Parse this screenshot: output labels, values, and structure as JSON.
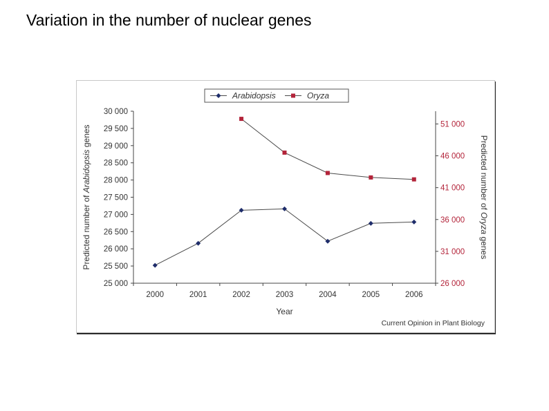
{
  "slide": {
    "title": "Variation in the number of nuclear genes"
  },
  "chart_data": {
    "type": "line",
    "x": [
      2000,
      2001,
      2002,
      2003,
      2004,
      2005,
      2006
    ],
    "xlabel": "Year",
    "series": [
      {
        "name": "Arabidopsis",
        "axis": "left",
        "color": "#1f2d6b",
        "marker": "diamond",
        "values": [
          25520,
          26160,
          27120,
          27160,
          26220,
          26740,
          26780
        ]
      },
      {
        "name": "Oryza",
        "axis": "right",
        "color": "#b3243a",
        "marker": "square",
        "values": [
          null,
          null,
          51800,
          46500,
          43300,
          42600,
          42300
        ]
      }
    ],
    "y_left": {
      "label_prefix": "Predicted number of ",
      "label_italic": "Arabidopsis",
      "label_suffix": " genes",
      "ylim": [
        25000,
        30000
      ],
      "ticks": [
        25000,
        25500,
        26000,
        26500,
        27000,
        27500,
        28000,
        28500,
        29000,
        29500,
        30000
      ],
      "tick_labels": [
        "25 000",
        "25 500",
        "26 000",
        "26 500",
        "27 000",
        "27 500",
        "28 000",
        "28 500",
        "29 000",
        "29 500",
        "30 000"
      ],
      "color": "#333333"
    },
    "y_right": {
      "label_prefix": "Predicted number of ",
      "label_italic": "Oryza",
      "label_suffix": " genes",
      "ylim": [
        26000,
        53000
      ],
      "ticks": [
        26000,
        31000,
        36000,
        41000,
        46000,
        51000
      ],
      "tick_labels": [
        "26 000",
        "31 000",
        "36 000",
        "41 000",
        "46 000",
        "51 000"
      ],
      "color": "#b3243a"
    },
    "legend": {
      "position": "top",
      "entries": [
        "Arabidopsis",
        "Oryza"
      ]
    },
    "grid": false,
    "source_note": "Current Opinion in Plant Biology"
  }
}
